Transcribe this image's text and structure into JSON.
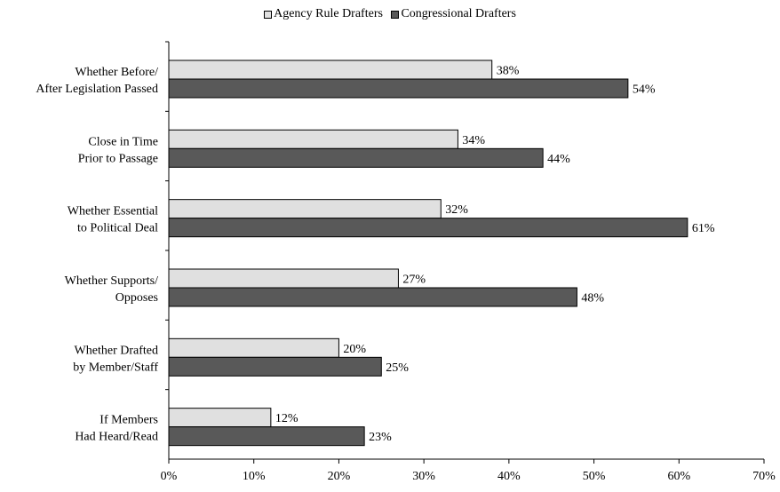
{
  "chart_data": {
    "type": "bar",
    "orientation": "horizontal",
    "categories": [
      [
        "Whether Before/",
        "After Legislation Passed"
      ],
      [
        "Close in Time",
        "Prior to Passage"
      ],
      [
        "Whether Essential",
        "to Political Deal"
      ],
      [
        "Whether Supports/",
        "Opposes"
      ],
      [
        "Whether Drafted",
        "by Member/Staff"
      ],
      [
        "If Members",
        "Had Heard/Read"
      ]
    ],
    "series": [
      {
        "name": "Agency Rule Drafters",
        "color": "#e0e0e0",
        "values": [
          38,
          34,
          32,
          27,
          20,
          12
        ]
      },
      {
        "name": "Congressional Drafters",
        "color": "#595959",
        "values": [
          54,
          44,
          61,
          48,
          25,
          23
        ]
      }
    ],
    "value_suffix": "%",
    "x_ticks": [
      "0%",
      "10%",
      "20%",
      "30%",
      "40%",
      "50%",
      "60%",
      "70%"
    ],
    "xlim": [
      0,
      70
    ],
    "legend_position": "top-center",
    "grid": false,
    "title": "",
    "xlabel": "",
    "ylabel": ""
  }
}
